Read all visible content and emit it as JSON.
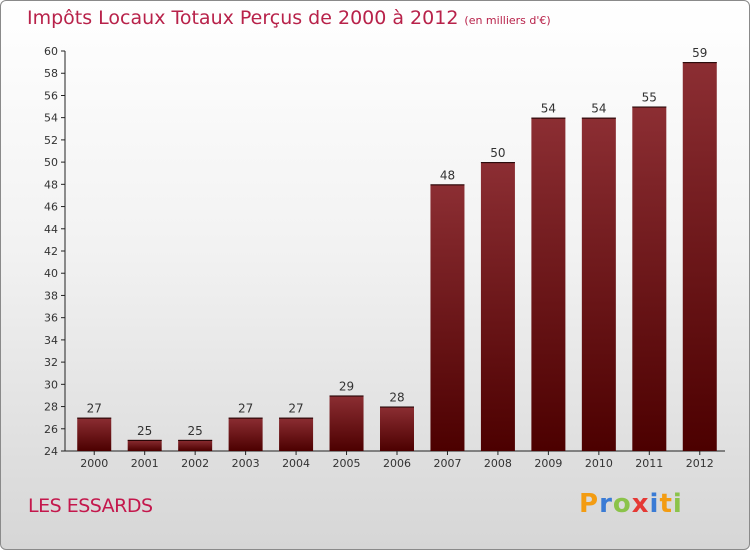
{
  "chart_data": {
    "type": "bar",
    "title": "Impôts Locaux Totaux Perçus de 2000 à 2012",
    "subtitle": "(en milliers d'€)",
    "categories": [
      "2000",
      "2001",
      "2002",
      "2003",
      "2004",
      "2005",
      "2006",
      "2007",
      "2008",
      "2009",
      "2010",
      "2011",
      "2012"
    ],
    "values": [
      27,
      25,
      25,
      27,
      27,
      29,
      28,
      48,
      50,
      54,
      54,
      55,
      59
    ],
    "ylim": [
      24,
      60
    ],
    "ytick_step": 2,
    "xlabel": "",
    "ylabel": "",
    "grid": false
  },
  "commune": "LES ESSARDS",
  "logo": {
    "letters": [
      "P",
      "r",
      "o",
      "x",
      "i",
      "t",
      "i"
    ],
    "colors": [
      "#f39c12",
      "#3a7bd5",
      "#8bc34a",
      "#e53935",
      "#3a7bd5",
      "#f39c12",
      "#8bc34a"
    ]
  },
  "colors": {
    "bar_top": "#8c2e33",
    "bar_bottom": "#4c0000",
    "title": "#b8224a"
  }
}
